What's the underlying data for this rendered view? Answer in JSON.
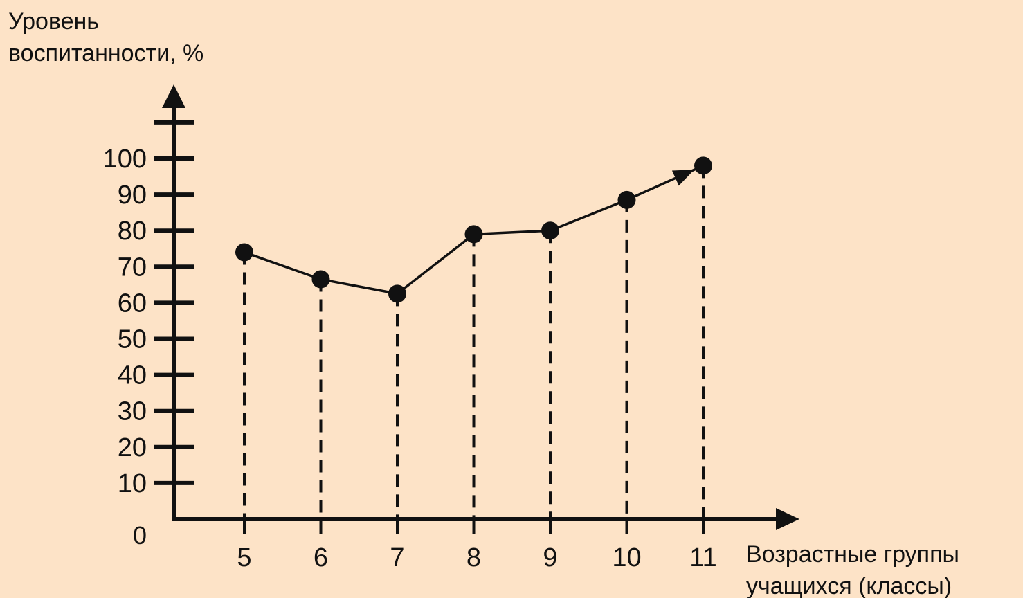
{
  "chart_data": {
    "type": "line",
    "title": "",
    "ylabel_lines": [
      "Уровень",
      "воспитанности, %"
    ],
    "xlabel_lines": [
      "Возрастные группы",
      "учащихся (классы)"
    ],
    "origin_label": "0",
    "x": [
      "5",
      "6",
      "7",
      "8",
      "9",
      "10",
      "11"
    ],
    "series": [
      {
        "values": [
          74,
          66.5,
          62.5,
          79,
          80,
          88.5,
          98
        ]
      }
    ],
    "yticks": [
      10,
      20,
      30,
      40,
      50,
      60,
      70,
      80,
      90,
      100
    ],
    "ylim": [
      0,
      110
    ],
    "grid": false,
    "drop_lines": "dashed",
    "last_segment_arrow": true,
    "colors": {
      "background": "#fde3c7",
      "ink": "#111111"
    }
  }
}
